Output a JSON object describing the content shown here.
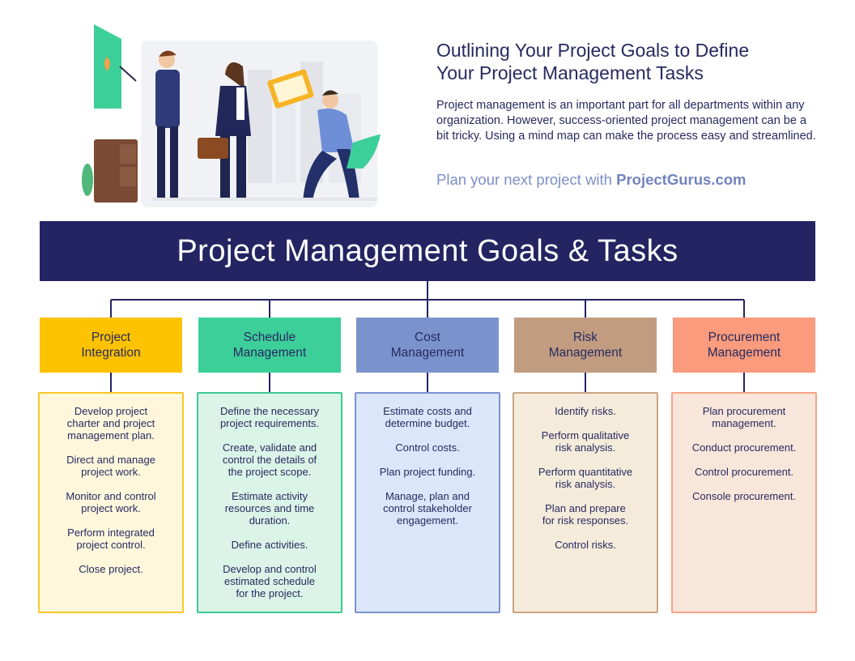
{
  "header": {
    "headline": "Outlining Your Project Goals to Define\nYour Project Management Tasks",
    "intro": "Project management is an important part for all departments within any organization. However, success-oriented project management can be a bit tricky. Using a mind map can make the process easy and streamlined.",
    "cta_prefix": "Plan your next project with ",
    "cta_brand": "ProjectGurus.com"
  },
  "banner": {
    "title": "Project Management Goals & Tasks"
  },
  "colors": {
    "navy": "#242463",
    "text": "#262a5e",
    "cta": "#7d8fc6"
  },
  "columns": [
    {
      "title": "Project\nIntegration",
      "head_color": "#fdc200",
      "box_bg": "#fff7dc",
      "box_border": "#f8c72a",
      "tasks": [
        "Develop project\ncharter and project\nmanagement plan.",
        "Direct and manage\nproject work.",
        "Monitor and control\nproject work.",
        "Perform integrated\nproject control.",
        "Close project."
      ]
    },
    {
      "title": "Schedule\nManagement",
      "head_color": "#3dcf9a",
      "box_bg": "#dcf4e8",
      "box_border": "#3ec996",
      "tasks": [
        "Define the necessary\nproject requirements.",
        "Create, validate and\ncontrol the details of\nthe project scope.",
        "Estimate activity\nresources and time\nduration.",
        "Define activities.",
        "Develop and control\nestimated schedule\nfor the project."
      ]
    },
    {
      "title": "Cost\nManagement",
      "head_color": "#7b93cd",
      "box_bg": "#dbe6fa",
      "box_border": "#7b93cd",
      "tasks": [
        "Estimate costs and\ndetermine budget.",
        "Control costs.",
        "Plan project funding.",
        "Manage, plan and\ncontrol stakeholder\nengagement."
      ]
    },
    {
      "title": "Risk\nManagement",
      "head_color": "#c29c81",
      "box_bg": "#f5ebdb",
      "box_border": "#c9a584",
      "tasks": [
        "Identify risks.",
        "Perform qualitative\nrisk analysis.",
        "Perform quantitative\nrisk analysis.",
        "Plan and prepare\nfor risk responses.",
        "Control risks."
      ]
    },
    {
      "title": "Procurement\nManagement",
      "head_color": "#f99b7c",
      "box_bg": "#f9e6da",
      "box_border": "#f6a386",
      "tasks": [
        "Plan procurement\nmanagement.",
        "Conduct procurement.",
        "Control procurement.",
        "Console procurement."
      ]
    }
  ]
}
